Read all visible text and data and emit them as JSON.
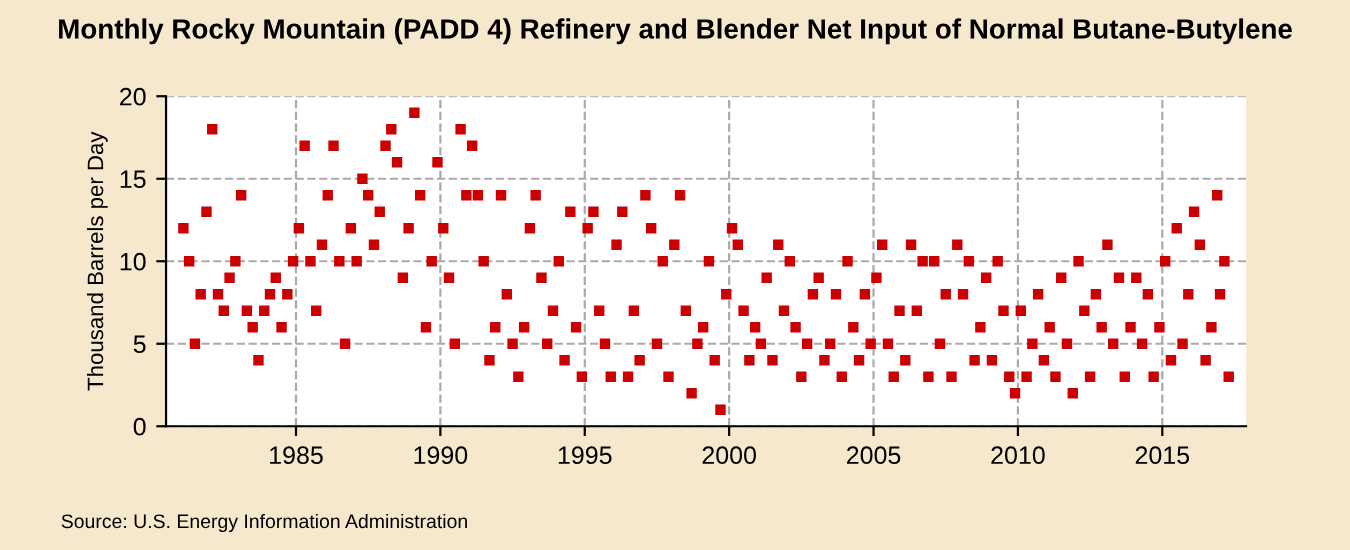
{
  "chart_data": {
    "type": "scatter",
    "title": "Monthly Rocky Mountain (PADD 4) Refinery and Blender Net Input of Normal Butane-Butylene",
    "ylabel": "Thousand Barrels per Day",
    "annotations": [
      "Source: U.S. Energy Information Administration"
    ],
    "x": [
      1981.1,
      1981.3,
      1981.5,
      1981.7,
      1981.9,
      1982.1,
      1982.3,
      1982.5,
      1982.7,
      1982.9,
      1983.1,
      1983.3,
      1983.5,
      1983.7,
      1983.9,
      1984.1,
      1984.3,
      1984.5,
      1984.7,
      1984.9,
      1985.1,
      1985.3,
      1985.5,
      1985.7,
      1985.9,
      1986.1,
      1986.3,
      1986.5,
      1986.7,
      1986.9,
      1987.1,
      1987.3,
      1987.5,
      1987.7,
      1987.9,
      1988.1,
      1988.3,
      1988.5,
      1988.7,
      1988.9,
      1989.1,
      1989.3,
      1989.5,
      1989.7,
      1989.9,
      1990.1,
      1990.3,
      1990.5,
      1990.7,
      1990.9,
      1991.1,
      1991.3,
      1991.5,
      1991.7,
      1991.9,
      1992.1,
      1992.3,
      1992.5,
      1992.7,
      1992.9,
      1993.1,
      1993.3,
      1993.5,
      1993.7,
      1993.9,
      1994.1,
      1994.3,
      1994.5,
      1994.7,
      1994.9,
      1995.1,
      1995.3,
      1995.5,
      1995.7,
      1995.9,
      1996.1,
      1996.3,
      1996.5,
      1996.7,
      1996.9,
      1997.1,
      1997.3,
      1997.5,
      1997.7,
      1997.9,
      1998.1,
      1998.3,
      1998.5,
      1998.7,
      1998.9,
      1999.1,
      1999.3,
      1999.5,
      1999.7,
      1999.9,
      2000.1,
      2000.3,
      2000.5,
      2000.7,
      2000.9,
      2001.1,
      2001.3,
      2001.5,
      2001.7,
      2001.9,
      2002.1,
      2002.3,
      2002.5,
      2002.7,
      2002.9,
      2003.1,
      2003.3,
      2003.5,
      2003.7,
      2003.9,
      2004.1,
      2004.3,
      2004.5,
      2004.7,
      2004.9,
      2005.1,
      2005.3,
      2005.5,
      2005.7,
      2005.9,
      2006.1,
      2006.3,
      2006.5,
      2006.7,
      2006.9,
      2007.1,
      2007.3,
      2007.5,
      2007.7,
      2007.9,
      2008.1,
      2008.3,
      2008.5,
      2008.7,
      2008.9,
      2009.1,
      2009.3,
      2009.5,
      2009.7,
      2009.9,
      2010.1,
      2010.3,
      2010.5,
      2010.7,
      2010.9,
      2011.1,
      2011.3,
      2011.5,
      2011.7,
      2011.9,
      2012.1,
      2012.3,
      2012.5,
      2012.7,
      2012.9,
      2013.1,
      2013.3,
      2013.5,
      2013.7,
      2013.9,
      2014.1,
      2014.3,
      2014.5,
      2014.7,
      2014.9,
      2015.1,
      2015.3,
      2015.5,
      2015.7,
      2015.9,
      2016.1,
      2016.3,
      2016.5,
      2016.7,
      2016.9,
      2017.0,
      2017.15,
      2017.3
    ],
    "values": [
      12,
      10,
      5,
      8,
      13,
      18,
      8,
      7,
      9,
      10,
      14,
      7,
      6,
      4,
      7,
      8,
      9,
      6,
      8,
      10,
      12,
      17,
      10,
      7,
      11,
      14,
      17,
      10,
      5,
      12,
      10,
      15,
      14,
      11,
      13,
      17,
      18,
      16,
      9,
      12,
      19,
      14,
      6,
      10,
      16,
      12,
      9,
      5,
      18,
      14,
      17,
      14,
      10,
      4,
      6,
      14,
      8,
      5,
      3,
      6,
      12,
      14,
      9,
      5,
      7,
      10,
      4,
      13,
      6,
      3,
      12,
      13,
      7,
      5,
      3,
      11,
      13,
      3,
      7,
      4,
      14,
      12,
      5,
      10,
      3,
      11,
      14,
      7,
      2,
      5,
      6,
      10,
      4,
      1,
      8,
      12,
      11,
      7,
      4,
      6,
      5,
      9,
      4,
      11,
      7,
      10,
      6,
      3,
      5,
      8,
      9,
      4,
      5,
      8,
      3,
      10,
      6,
      4,
      8,
      5,
      9,
      11,
      5,
      3,
      7,
      4,
      11,
      7,
      10,
      3,
      10,
      5,
      8,
      3,
      11,
      8,
      10,
      4,
      6,
      9,
      4,
      10,
      7,
      3,
      2,
      7,
      3,
      5,
      8,
      4,
      6,
      3,
      9,
      5,
      2,
      10,
      7,
      3,
      8,
      6,
      11,
      5,
      9,
      3,
      6,
      9,
      5,
      8,
      3,
      6,
      10,
      4,
      12,
      5,
      8,
      13,
      11,
      4,
      6,
      14,
      8,
      10,
      3
    ],
    "color": "#cc0000",
    "marker": "square",
    "xlim": [
      1980.5,
      2017.9
    ],
    "xticks": [
      1985,
      1990,
      1995,
      2000,
      2005,
      2010,
      2015
    ],
    "ylim": [
      0,
      20
    ],
    "yticks": [
      0,
      5,
      10,
      15,
      20
    ],
    "grid": true
  }
}
